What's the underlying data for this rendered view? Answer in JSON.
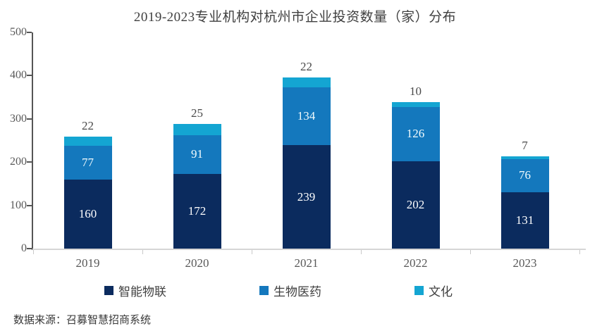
{
  "footer": {
    "source": "数据来源：召募智慧招商系统"
  },
  "chart_data": {
    "type": "bar",
    "stacked": true,
    "title": "2019-2023专业机构对杭州市企业投资数量（家）分布",
    "categories": [
      "2019",
      "2020",
      "2021",
      "2022",
      "2023"
    ],
    "series": [
      {
        "name": "智能物联",
        "color": "#0b2b5e",
        "values": [
          160,
          172,
          239,
          202,
          131
        ],
        "label_position": "inside",
        "label_color": "#ffffff"
      },
      {
        "name": "生物医药",
        "color": "#1478bd",
        "values": [
          77,
          91,
          134,
          126,
          76
        ],
        "label_position": "inside",
        "label_color": "#f2fbfd"
      },
      {
        "name": "文化",
        "color": "#14a5d2",
        "values": [
          22,
          25,
          22,
          10,
          7
        ],
        "label_position": "above",
        "label_color": "#4a4a4a"
      }
    ],
    "ylim": [
      0,
      500
    ],
    "yticks": [
      0,
      100,
      200,
      300,
      400,
      500
    ],
    "xlabel": "",
    "ylabel": "",
    "grid": false,
    "legend_position": "bottom"
  }
}
